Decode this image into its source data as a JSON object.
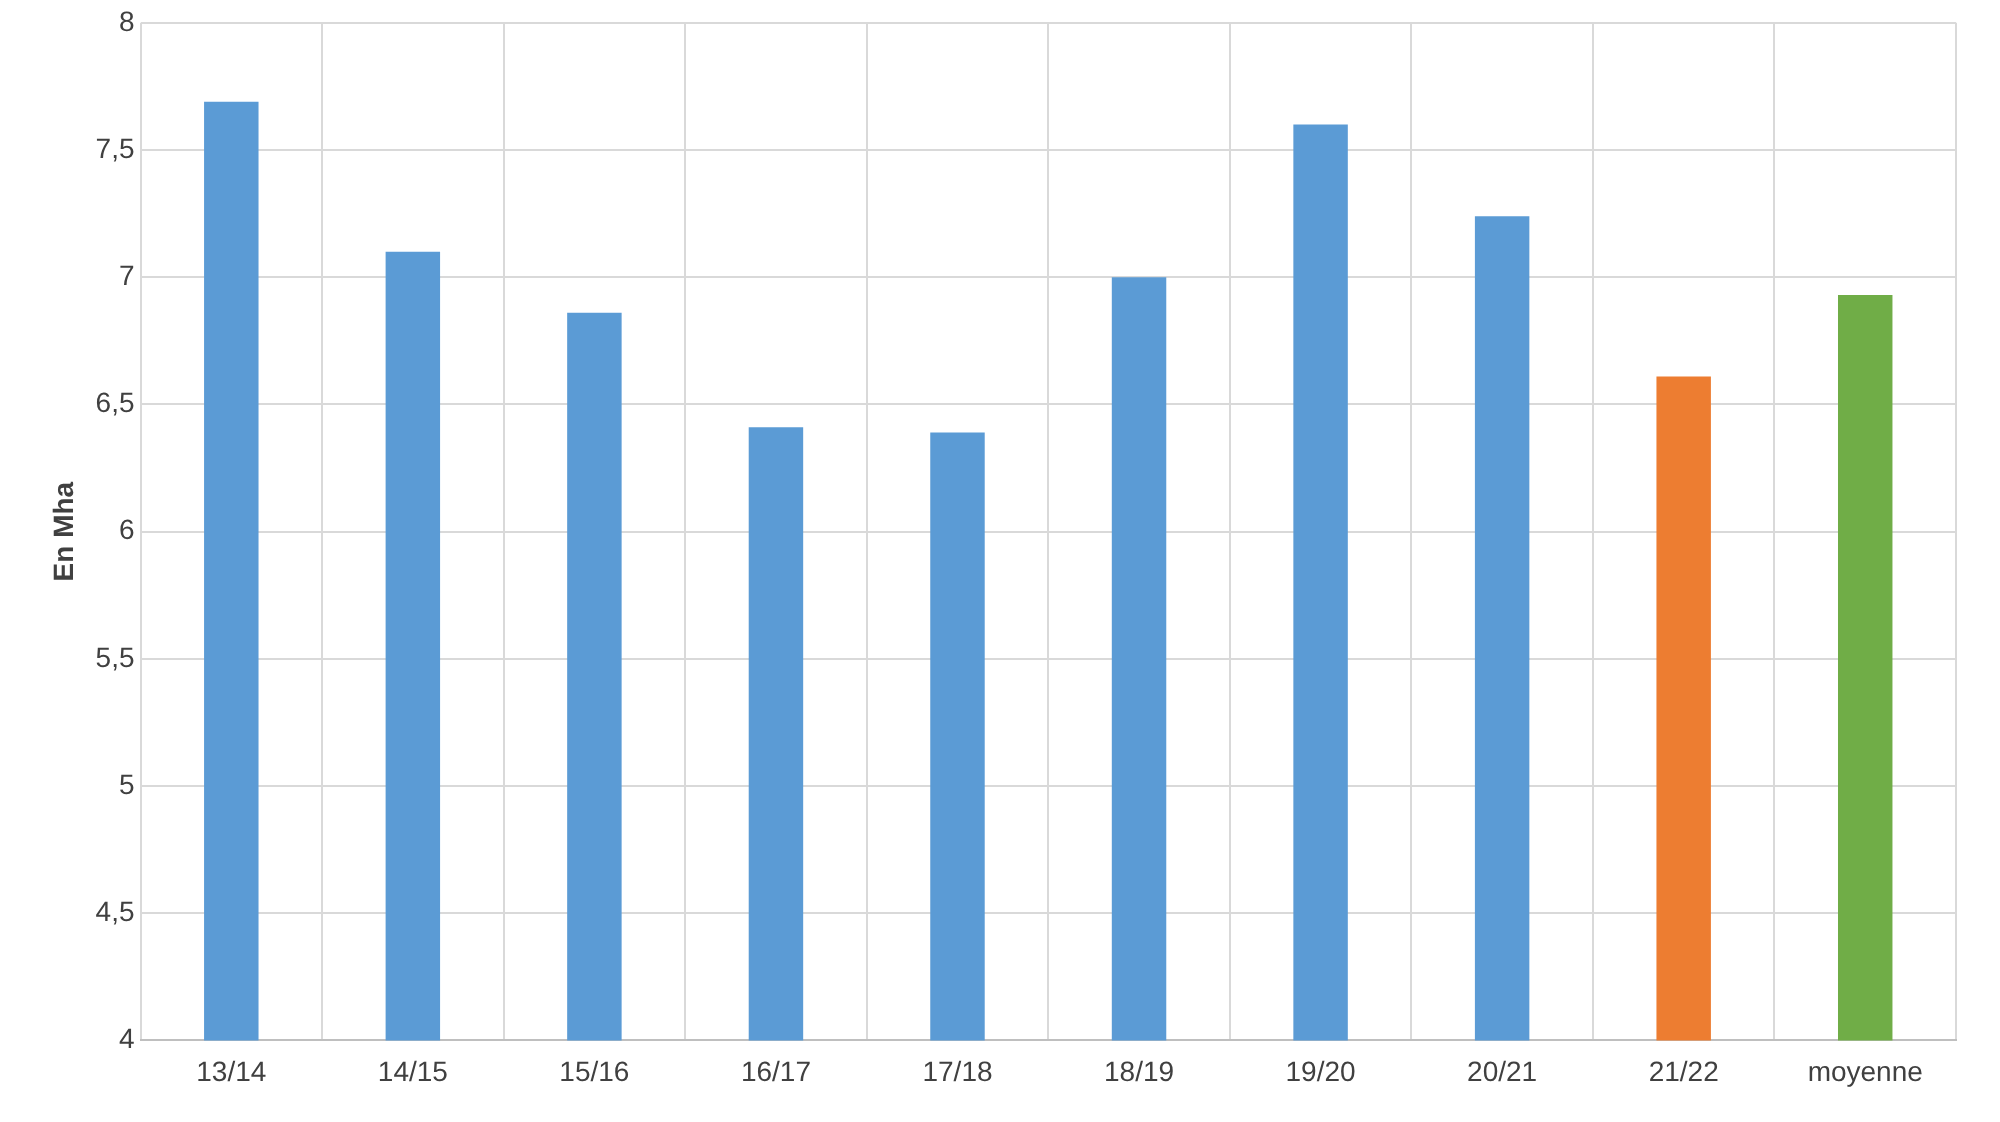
{
  "chart_data": {
    "type": "bar",
    "ylabel": "En Mha",
    "categories": [
      "13/14",
      "14/15",
      "15/16",
      "16/17",
      "17/18",
      "18/19",
      "19/20",
      "20/21",
      "21/22",
      "moyenne"
    ],
    "values": [
      7.69,
      7.1,
      6.86,
      6.41,
      6.39,
      7.0,
      7.6,
      7.24,
      6.61,
      6.93
    ],
    "colors": [
      "#5b9bd5",
      "#5b9bd5",
      "#5b9bd5",
      "#5b9bd5",
      "#5b9bd5",
      "#5b9bd5",
      "#5b9bd5",
      "#5b9bd5",
      "#ed7d31",
      "#70ad47"
    ],
    "ylim": [
      4,
      8
    ],
    "yticks": [
      4,
      {
        "value": 4.5,
        "label": "4,5"
      },
      5,
      {
        "value": 5.5,
        "label": "5,5"
      },
      6,
      {
        "value": 6.5,
        "label": "6,5"
      },
      7,
      {
        "value": 7.5,
        "label": "7,5"
      },
      8
    ],
    "grid": true
  }
}
